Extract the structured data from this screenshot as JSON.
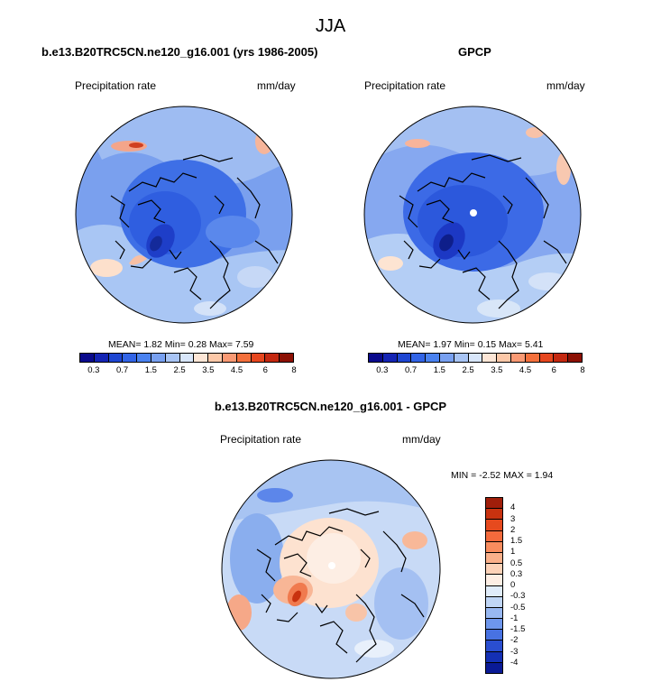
{
  "figure": {
    "title": "JJA"
  },
  "panels": [
    {
      "title": "b.e13.B20TRC5CN.ne120_g16.001 (yrs 1986-2005)",
      "left_label": "Precipitation rate",
      "right_label": "mm/day",
      "stats": "MEAN=   1.82  Min=   0.28  Max=   7.59"
    },
    {
      "title": "GPCP",
      "left_label": "Precipitation rate",
      "right_label": "mm/day",
      "stats": "MEAN=   1.97  Min=   0.15  Max=   5.41"
    },
    {
      "title": "b.e13.B20TRC5CN.ne120_g16.001 - GPCP",
      "left_label": "Precipitation rate",
      "right_label": "mm/day",
      "stats": "MIN =  -2.52 MAX =   1.94"
    }
  ],
  "colorbar_top": {
    "ticks": [
      "0.3",
      "0.7",
      "1.5",
      "2.5",
      "3.5",
      "4.5",
      "6",
      "8"
    ],
    "colors": [
      "#0a0a8c",
      "#1424b4",
      "#1e46d2",
      "#3264e6",
      "#4a82f0",
      "#78a0f0",
      "#a8c4f4",
      "#d8e6fa",
      "#fde6d6",
      "#fcc8a8",
      "#fa9a74",
      "#f4703c",
      "#e6461e",
      "#c42810",
      "#8c1004"
    ]
  },
  "colorbar_diff": {
    "labels": [
      "4",
      "3",
      "2",
      "1.5",
      "1",
      "0.5",
      "0.3",
      "0",
      "-0.3",
      "-0.5",
      "-1",
      "-1.5",
      "-2",
      "-3",
      "-4"
    ],
    "colors": [
      "#a01e0a",
      "#c8320f",
      "#e64a1e",
      "#f46a3c",
      "#f88c5e",
      "#fab08a",
      "#fcd2b8",
      "#fdeee4",
      "#e0ecfa",
      "#c0d6f6",
      "#98b8f2",
      "#6e96ec",
      "#4872e2",
      "#2a4ed0",
      "#1430b4",
      "#0a1a96"
    ]
  }
}
